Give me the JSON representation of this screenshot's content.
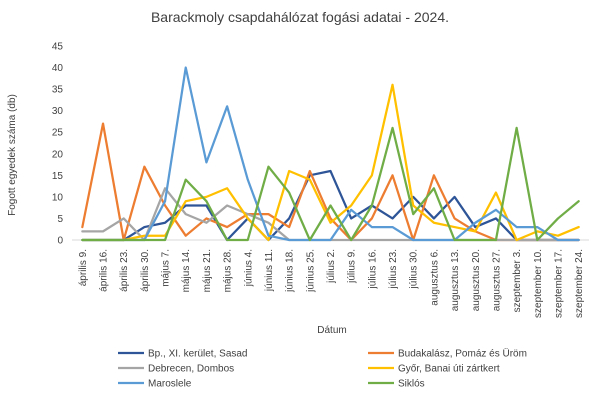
{
  "chart_data": {
    "type": "line",
    "title": "Barackmoly csapdahálózat fogási adatai - 2024.",
    "xlabel": "Dátum",
    "ylabel": "Fogott egyedek száma (db)",
    "ylim": [
      0,
      45
    ],
    "yticks": [
      0,
      5,
      10,
      15,
      20,
      25,
      30,
      35,
      40,
      45
    ],
    "grid": false,
    "legend_position": "bottom",
    "categories": [
      "április 9.",
      "április 16.",
      "április 23.",
      "április 30.",
      "május 7.",
      "május 14.",
      "május 21.",
      "május 28.",
      "június 4.",
      "június 11.",
      "június 18.",
      "június 25.",
      "július 2.",
      "július 9.",
      "július 16.",
      "július 23.",
      "július 30.",
      "augusztus 6.",
      "augusztus 13.",
      "augusztus 20.",
      "augusztus 27.",
      "szeptember 3.",
      "szeptember 10.",
      "szeptember 17.",
      "szeptember 24."
    ],
    "series": [
      {
        "name": "Bp., XI. kerület, Sasad",
        "color": "#2E5597",
        "values": [
          0,
          0,
          0,
          3,
          4,
          8,
          8,
          0,
          5,
          0,
          5,
          15,
          16,
          5,
          8,
          5,
          10,
          5,
          10,
          3,
          5,
          0,
          0,
          0,
          0
        ]
      },
      {
        "name": "Budakalász, Pomáz és Üröm",
        "color": "#ED7D31",
        "values": [
          3,
          27,
          0,
          17,
          8,
          1,
          5,
          3,
          6,
          6,
          3,
          16,
          5,
          0,
          5,
          15,
          0,
          15,
          5,
          2,
          0,
          0,
          0,
          0,
          0
        ]
      },
      {
        "name": "Debrecen, Dombos",
        "color": "#A5A5A5",
        "values": [
          2,
          2,
          5,
          0,
          12,
          6,
          4,
          8,
          6,
          4,
          0,
          0,
          0,
          0,
          0,
          0,
          0,
          0,
          0,
          0,
          0,
          0,
          0,
          0,
          0
        ]
      },
      {
        "name": "Győr, Banai úti zártkert",
        "color": "#FFC000",
        "values": [
          0,
          0,
          0,
          1,
          1,
          9,
          10,
          12,
          5,
          0,
          16,
          14,
          4,
          8,
          15,
          36,
          8,
          4,
          3,
          2,
          11,
          0,
          2,
          1,
          3
        ]
      },
      {
        "name": "Maroslele",
        "color": "#5B9BD5",
        "values": [
          0,
          0,
          0,
          0,
          9,
          40,
          18,
          31,
          14,
          1,
          0,
          0,
          0,
          7,
          3,
          3,
          0,
          0,
          0,
          4,
          7,
          3,
          3,
          0,
          0
        ]
      },
      {
        "name": "Siklós",
        "color": "#70AD47",
        "values": [
          0,
          0,
          0,
          0,
          0,
          14,
          9,
          0,
          0,
          17,
          11,
          0,
          8,
          0,
          8,
          26,
          6,
          12,
          0,
          0,
          0,
          26,
          0,
          5,
          9
        ]
      }
    ]
  }
}
